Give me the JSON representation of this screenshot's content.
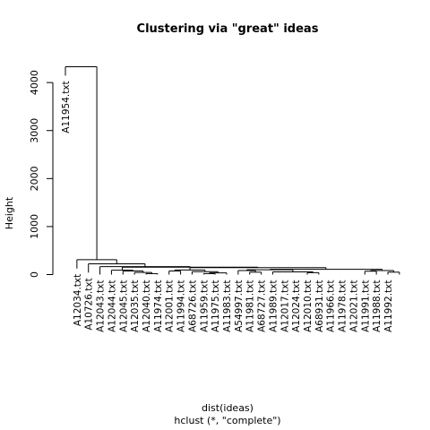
{
  "chart_data": {
    "type": "dendrogram",
    "title": "Clustering via \"great\" ideas",
    "xlabel": "dist(ideas)",
    "sublabel": "hclust (*, \"complete\")",
    "ylabel": "Height",
    "ylim": [
      0,
      4600
    ],
    "yticks": [
      0,
      1000,
      2000,
      3000,
      4000
    ],
    "labels": [
      "A11954.txt",
      "A12034.txt",
      "A10726.txt",
      "A12043.txt",
      "A12044.txt",
      "A12045.txt",
      "A12035.txt",
      "A12040.txt",
      "A11974.txt",
      "A12001.txt",
      "A11994.txt",
      "A68726.txt",
      "A11959.txt",
      "A11975.txt",
      "A11983.txt",
      "A54997.txt",
      "A11981.txt",
      "A68727.txt",
      "A11989.txt",
      "A12017.txt",
      "A12024.txt",
      "A12010.txt",
      "A68931.txt",
      "A11966.txt",
      "A11978.txt",
      "A12021.txt",
      "A11991.txt",
      "A11988.txt",
      "A11992.txt"
    ],
    "merges": [
      {
        "left": 26,
        "right": 27,
        "height": 70
      },
      {
        "left": 28,
        "right": 29,
        "height": 50
      },
      {
        "left": -30,
        "right": -31,
        "height": 85
      },
      {
        "left": 23,
        "right": 24,
        "height": 75
      },
      {
        "left": 25,
        "right": -33,
        "height": 90
      },
      {
        "left": 21,
        "right": 22,
        "height": 40
      },
      {
        "left": 19,
        "right": 20,
        "height": 50
      },
      {
        "left": 18,
        "right": -35,
        "height": 55
      },
      {
        "left": -36,
        "right": -34,
        "height": 70
      },
      {
        "left": 16,
        "right": 17,
        "height": 50
      },
      {
        "left": 15,
        "right": -39,
        "height": 85
      },
      {
        "left": -40,
        "right": -37,
        "height": 100
      },
      {
        "left": -41,
        "right": -32,
        "height": 110
      },
      {
        "left": 12,
        "right": 13,
        "height": 20
      },
      {
        "left": -43,
        "right": 14,
        "height": 35
      },
      {
        "left": 11,
        "right": -44,
        "height": 60
      },
      {
        "left": 9,
        "right": 10,
        "height": 75
      },
      {
        "left": -45,
        "right": -46,
        "height": 95
      },
      {
        "left": -47,
        "right": -42,
        "height": 145
      },
      {
        "left": 7,
        "right": 8,
        "height": 20
      },
      {
        "left": 6,
        "right": -49,
        "height": 45
      },
      {
        "left": 5,
        "right": -50,
        "height": 75
      },
      {
        "left": 4,
        "right": -51,
        "height": 90
      },
      {
        "left": -52,
        "right": -48,
        "height": 155
      },
      {
        "left": 3,
        "right": -53,
        "height": 165
      },
      {
        "left": 2,
        "right": -54,
        "height": 225
      },
      {
        "left": 1,
        "right": -55,
        "height": 310
      },
      {
        "left": 0,
        "right": -56,
        "height": 4330
      }
    ]
  }
}
